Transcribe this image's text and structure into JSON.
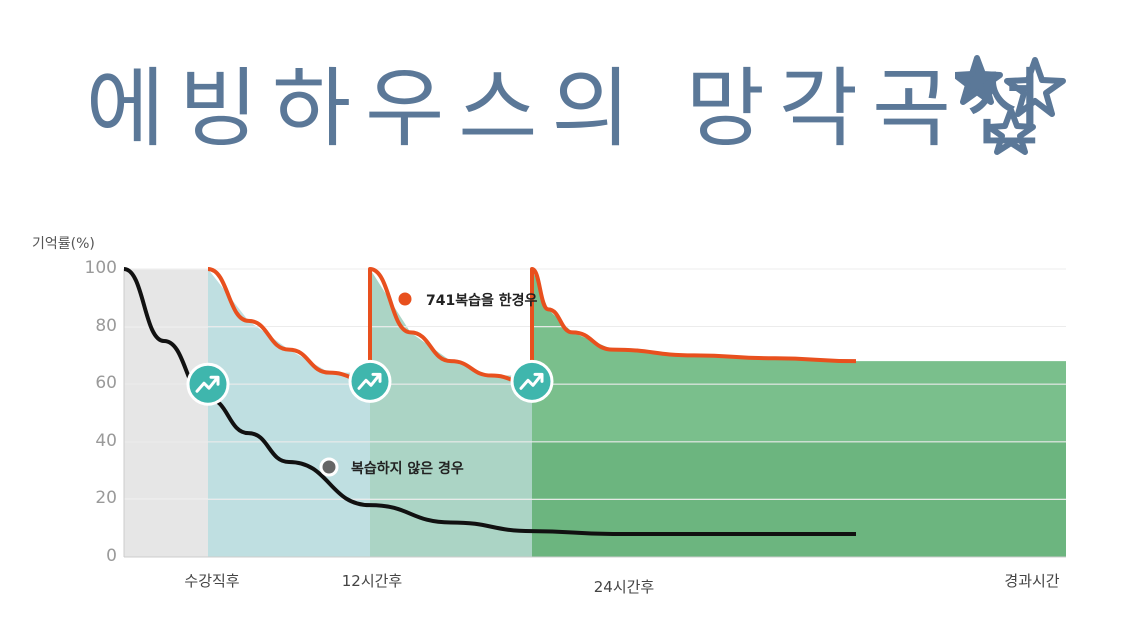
{
  "title": "에빙하우스의 망각곡선",
  "title_color": "#5b7898",
  "decoration": {
    "icon": "star-icon",
    "count": 2
  },
  "chart_data": {
    "type": "line",
    "title": "에빙하우스의 망각곡선",
    "ylabel": "기억률(%)",
    "xlabel": "경과시간",
    "ylim": [
      0,
      100
    ],
    "yticks": [
      "100",
      "80",
      "60",
      "40",
      "20",
      "0"
    ],
    "categories": [
      "수강직후",
      "12시간후",
      "24시간후",
      "경과시간"
    ],
    "grid": true,
    "series": [
      {
        "name": "741복습을 한경우",
        "color": "#e8501e",
        "x": [
          0,
          0.5,
          1.0,
          1.5,
          2.0,
          2.5,
          3.0,
          3.5,
          4.0,
          4.2,
          4.5,
          5.0,
          6.0,
          7.0,
          8.0
        ],
        "values": [
          100,
          82,
          72,
          64,
          100,
          78,
          68,
          63,
          100,
          86,
          78,
          72,
          70,
          69,
          68
        ]
      },
      {
        "name": "복습하지 않은 경우",
        "color": "#111111",
        "x": [
          -1,
          -0.5,
          0,
          0.5,
          1,
          2,
          3,
          4,
          5,
          6,
          7,
          8
        ],
        "values": [
          100,
          75,
          55,
          43,
          33,
          18,
          12,
          9,
          8,
          8,
          8,
          8
        ]
      }
    ],
    "review_points": [
      {
        "x": 0,
        "y": 60,
        "icon": "review-up-arrow-icon"
      },
      {
        "x": 2,
        "y": 61,
        "icon": "review-up-arrow-icon"
      },
      {
        "x": 4,
        "y": 61,
        "icon": "review-up-arrow-icon"
      }
    ],
    "colors": {
      "band_before": "#e6e6e6",
      "band_1": "#b4d9dc",
      "band_2": "#9ccdbb",
      "band_3": "#6bb880",
      "icon_circle": "#3fb6ad"
    }
  }
}
